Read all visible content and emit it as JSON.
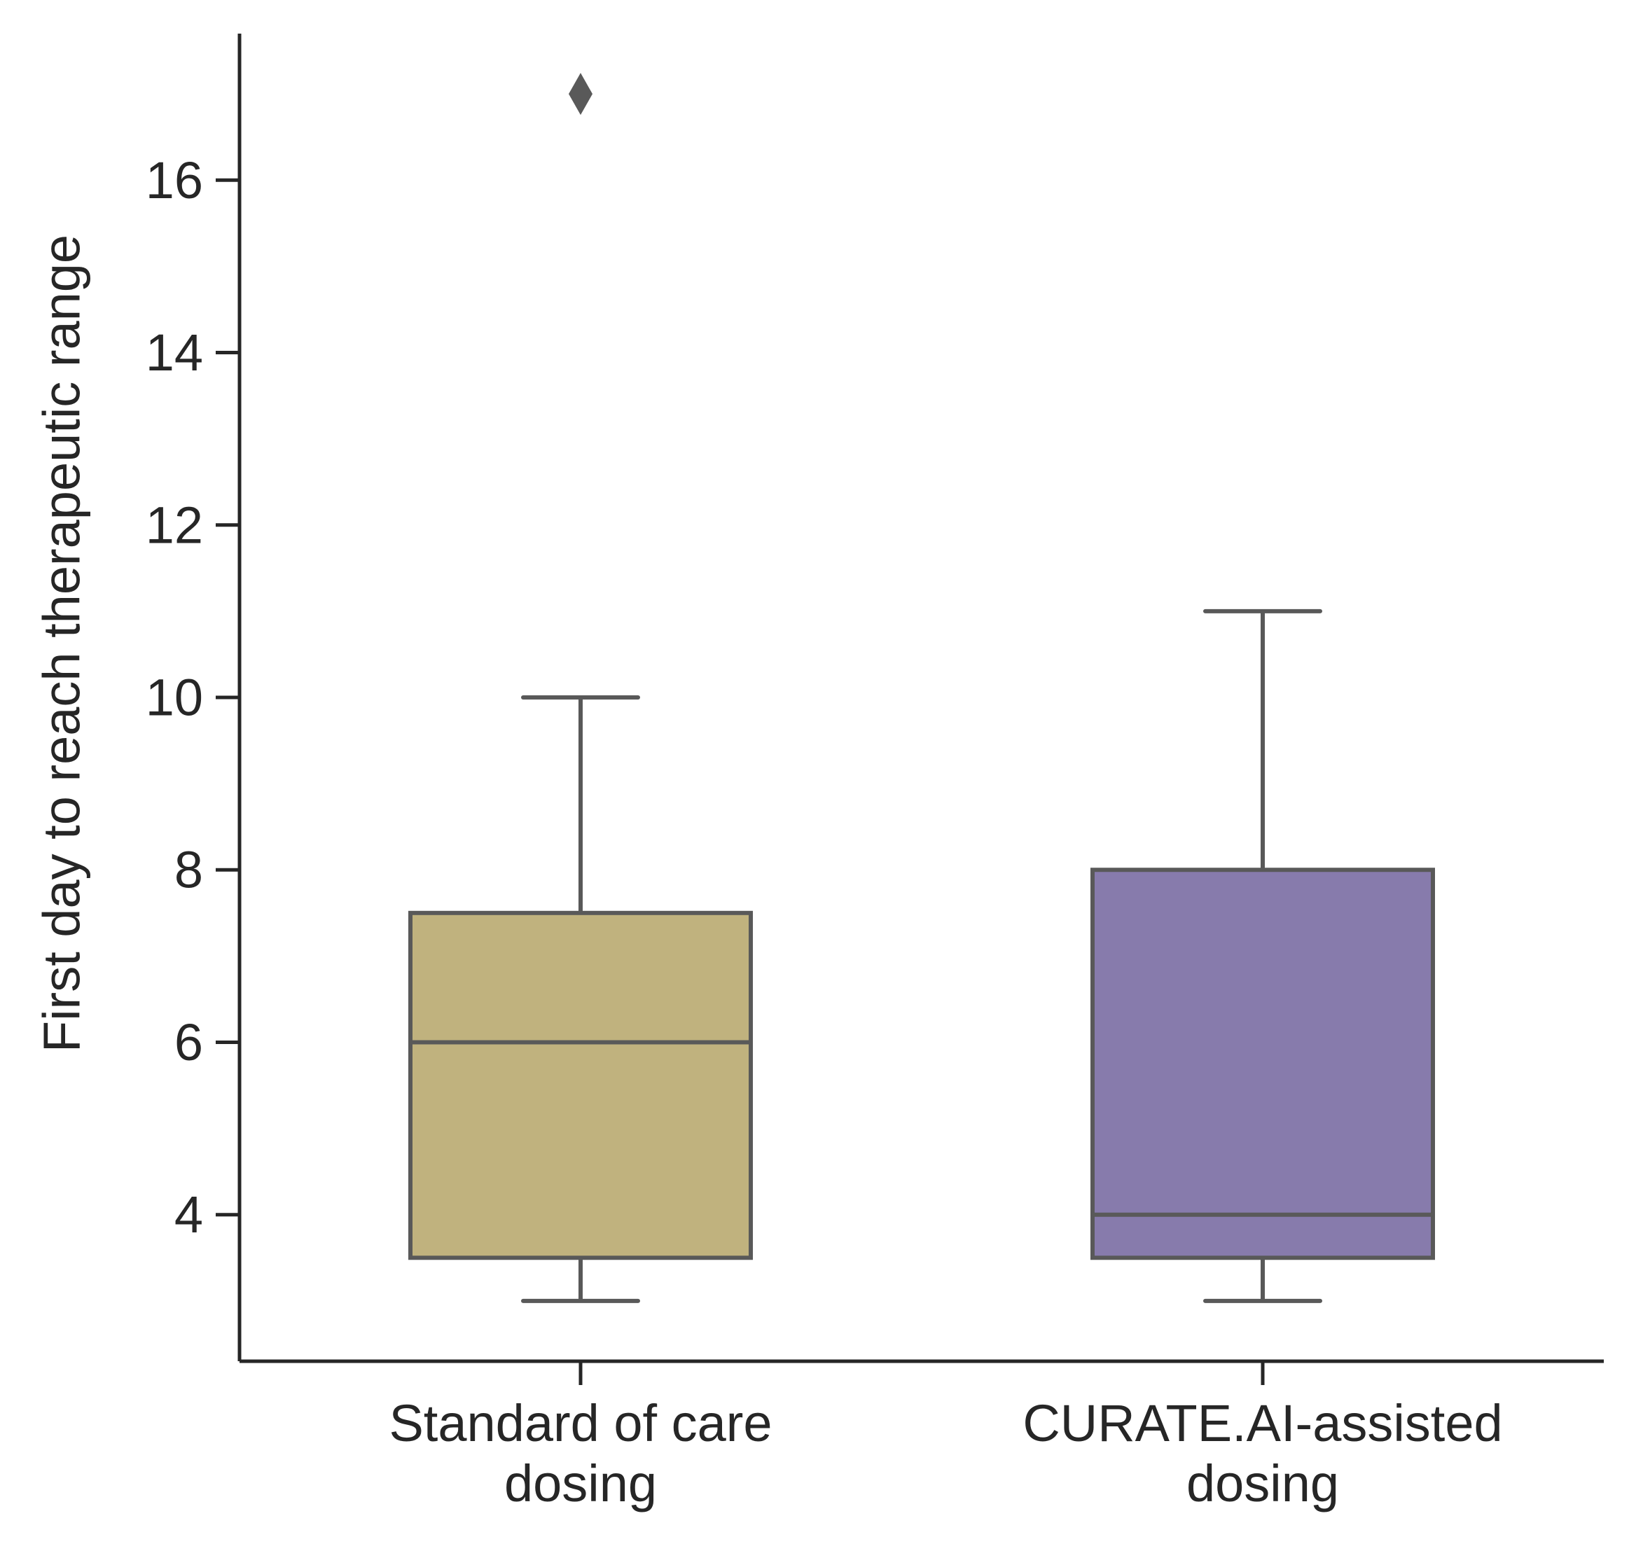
{
  "chart_data": {
    "type": "box",
    "title": "",
    "xlabel": "",
    "ylabel": "First day to reach therapeutic range",
    "ylim": [
      2.3,
      17.7
    ],
    "yticks": [
      4,
      6,
      8,
      10,
      12,
      14,
      16
    ],
    "grid": false,
    "categories": [
      [
        "Standard of care",
        "dosing"
      ],
      [
        "CURATE.AI-assisted",
        "dosing"
      ]
    ],
    "boxes": [
      {
        "whisker_low": 3,
        "q1": 3.5,
        "median": 6,
        "q3": 7.5,
        "whisker_high": 10,
        "outliers": [
          17
        ],
        "color": "#c0b27e"
      },
      {
        "whisker_low": 3,
        "q1": 3.5,
        "median": 4,
        "q3": 8,
        "whisker_high": 11,
        "outliers": [],
        "color": "#877bac"
      }
    ],
    "line_color": "#595959",
    "axis_color": "#262626"
  }
}
